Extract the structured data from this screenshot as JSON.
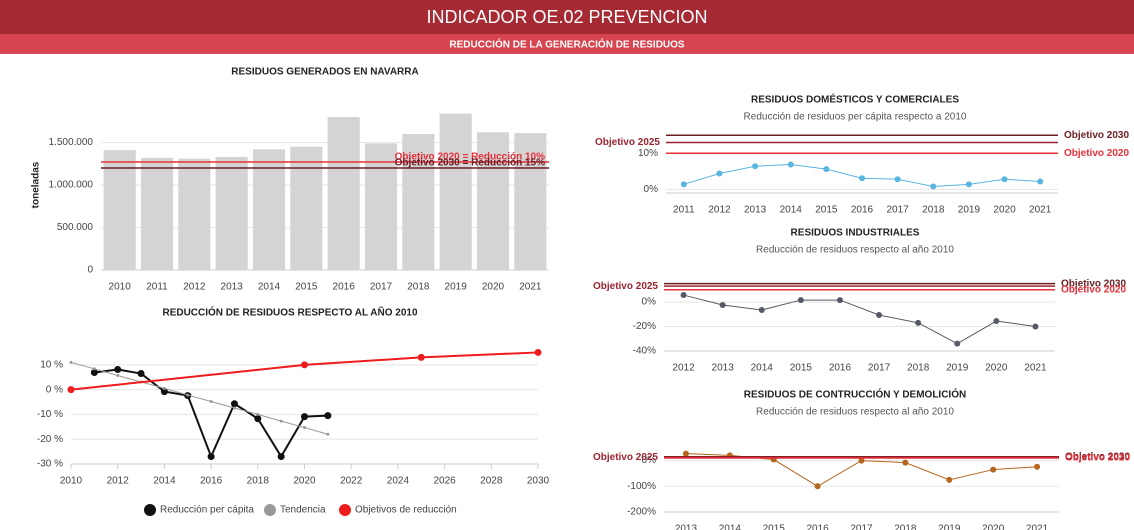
{
  "header": {
    "title": "INDICADOR OE.02 PREVENCION",
    "subtitle": "REDUCCIÓN DE LA GENERACIÓN DE RESIDUOS"
  },
  "chart_data": [
    {
      "type": "bar",
      "title": "RESIDUOS GENERADOS EN NAVARRA",
      "y_label": "toneladas",
      "color": "#d4d4d4",
      "grid": true,
      "categories": [
        "2010",
        "2011",
        "2012",
        "2013",
        "2014",
        "2015",
        "2016",
        "2017",
        "2018",
        "2019",
        "2020",
        "2021"
      ],
      "values": [
        1410000,
        1320000,
        1310000,
        1330000,
        1420000,
        1450000,
        1800000,
        1490000,
        1600000,
        1840000,
        1620000,
        1610000
      ],
      "ylim": [
        0,
        2000000
      ],
      "yticks": [
        0,
        {
          "value": 500000,
          "label": "500.000"
        },
        {
          "value": 1000000,
          "label": "1.000.000"
        },
        {
          "value": 1500000,
          "label": "1.500.000"
        }
      ],
      "reference_lines": [
        {
          "label": "Objetivo 2020 = Reducción 10%",
          "value": 1270000,
          "color": "#e8303a"
        },
        {
          "label": "Objetivo 2030 = Reducción 15%",
          "value": 1200000,
          "color": "#6b1d22"
        }
      ]
    },
    {
      "type": "line",
      "title": "REDUCCIÓN DE RESIDUOS RESPECTO AL AÑO 2010",
      "grid": true,
      "legend": "bottom",
      "xlim": [
        2010,
        2030
      ],
      "xticks": [
        2010,
        2012,
        2014,
        2016,
        2018,
        2020,
        2022,
        2024,
        2026,
        2028,
        2030
      ],
      "ylim": [
        -30,
        18
      ],
      "yticks": [
        {
          "value": 10,
          "label": "10 %"
        },
        {
          "value": 0,
          "label": "0 %"
        },
        {
          "value": -10,
          "label": "-10 %"
        },
        {
          "value": -20,
          "label": "-20 %"
        },
        {
          "value": -30,
          "label": "-30 %"
        }
      ],
      "series": [
        {
          "name": "Reducción per cápita",
          "color": "#111111",
          "x": [
            2011,
            2012,
            2013,
            2014,
            2015,
            2016,
            2017,
            2018,
            2019,
            2020,
            2021
          ],
          "values": [
            6.9,
            8.1,
            6.5,
            -0.8,
            -2.4,
            -27,
            -5.7,
            -11.7,
            -27,
            -10.9,
            -10.5
          ]
        },
        {
          "name": "Tendencia",
          "color": "#999999",
          "x": [
            2010,
            2011,
            2012,
            2013,
            2014,
            2015,
            2016,
            2017,
            2018,
            2019,
            2020,
            2021
          ],
          "values": [
            11,
            8.4,
            5.7,
            3.1,
            0.5,
            -2.2,
            -4.8,
            -7.4,
            -10,
            -12.7,
            -15.3,
            -18
          ]
        },
        {
          "name": "Objetivos de reducción",
          "color": "#ee1c1c",
          "x": [
            2010,
            2020,
            2025,
            2030
          ],
          "values": [
            0,
            10,
            13,
            15
          ]
        }
      ]
    },
    {
      "type": "line",
      "title": "RESIDUOS DOMÉSTICOS Y COMERCIALES",
      "subtitle": "Reducción de residuos per cápita respecto a 2010",
      "color": "#5ab4e0",
      "grid": true,
      "categories": [
        "2011",
        "2012",
        "2013",
        "2014",
        "2015",
        "2016",
        "2017",
        "2018",
        "2019",
        "2020",
        "2021"
      ],
      "values": [
        1.4,
        4.4,
        6.4,
        6.9,
        5.6,
        3.1,
        2.8,
        0.8,
        1.4,
        2.8,
        2.2
      ],
      "ylim": [
        -1,
        17
      ],
      "yticks": [
        {
          "value": 0,
          "label": "0%"
        },
        {
          "value": 10,
          "label": "10%"
        }
      ],
      "reference_lines": [
        {
          "label": "Objetivo 2030",
          "value": 15,
          "color": "#6b1d22",
          "label_side": "right"
        },
        {
          "label": "Objetivo 2025",
          "value": 13,
          "color": "#9c2430",
          "label_side": "left"
        },
        {
          "label": "Objetivo 2020",
          "value": 10,
          "color": "#e8303a",
          "label_side": "right"
        }
      ]
    },
    {
      "type": "line",
      "title": "RESIDUOS INDUSTRIALES",
      "subtitle": "Reducción de residuos respecto al año 2010",
      "color": "#555a66",
      "grid": true,
      "categories": [
        "2012",
        "2013",
        "2014",
        "2015",
        "2016",
        "2017",
        "2018",
        "2019",
        "2020",
        "2021"
      ],
      "values": [
        5.7,
        -2.4,
        -6.5,
        1.6,
        1.6,
        -10.6,
        -17,
        -34,
        -15.5,
        -20
      ],
      "ylim": [
        -40,
        18
      ],
      "yticks": [
        {
          "value": 0,
          "label": "0%"
        },
        {
          "value": -20,
          "label": "-20%"
        },
        {
          "value": -40,
          "label": "-40%"
        }
      ],
      "reference_lines": [
        {
          "label": "Objetivo 2030",
          "value": 15,
          "color": "#6b1d22",
          "label_side": "right"
        },
        {
          "label": "Objetivo 2025",
          "value": 13,
          "color": "#9c2430",
          "label_side": "left"
        },
        {
          "label": "Objetivo 2020",
          "value": 10,
          "color": "#e8303a",
          "label_side": "right"
        }
      ]
    },
    {
      "type": "line",
      "title": "RESIDUOS DE CONTRUCCIÓN Y DEMOLICIÓN",
      "subtitle": "Reducción de residuos respecto al año 2010",
      "color": "#b5651d",
      "grid": true,
      "categories": [
        "2013",
        "2014",
        "2015",
        "2016",
        "2017",
        "2018",
        "2019",
        "2020",
        "2021"
      ],
      "values": [
        27,
        20,
        4,
        -100,
        0,
        -8,
        -75,
        -35,
        -24
      ],
      "ylim": [
        -200,
        80
      ],
      "yticks": [
        {
          "value": 0,
          "label": "0%"
        },
        {
          "value": -100,
          "label": "-100%"
        },
        {
          "value": -200,
          "label": "-200%"
        }
      ],
      "reference_lines": [
        {
          "label": "Objetivo 2030",
          "value": 15,
          "color": "#6b1d22",
          "label_side": "right"
        },
        {
          "label": "Objetivo 2025",
          "value": 13,
          "color": "#9c2430",
          "label_side": "left"
        },
        {
          "label": "Objetivo 2020",
          "value": 10,
          "color": "#e8303a",
          "label_side": "right"
        }
      ]
    }
  ]
}
